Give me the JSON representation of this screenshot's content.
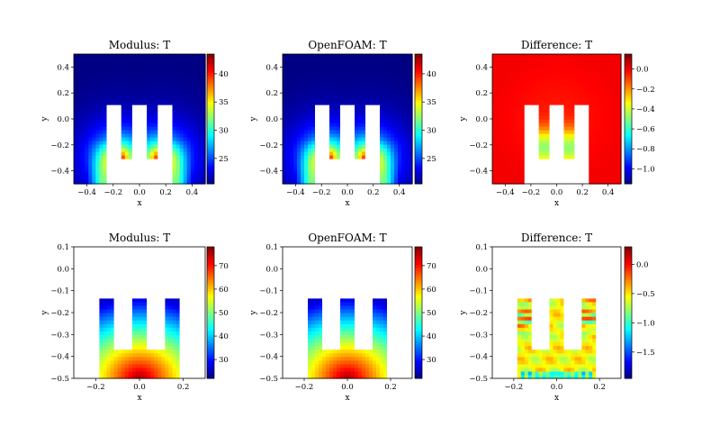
{
  "figure": {
    "colormap": "jet",
    "mask_color": "#ffffff"
  },
  "chart_data": [
    {
      "type": "heatmap",
      "title": "Modulus: T",
      "xlabel": "x",
      "ylabel": "y",
      "xlim": [
        -0.5,
        0.5
      ],
      "ylim": [
        -0.5,
        0.5
      ],
      "xticks": [
        -0.4,
        -0.2,
        0.0,
        0.2,
        0.4
      ],
      "yticks": [
        -0.4,
        -0.2,
        0.0,
        0.2,
        0.4
      ],
      "xtick_labels": [
        "−0.4",
        "−0.2",
        "0.0",
        "0.2",
        "0.4"
      ],
      "ytick_labels": [
        "−0.4",
        "−0.2",
        "0.0",
        "0.2",
        "0.4"
      ],
      "colorbar": {
        "range": [
          20.5,
          43.5
        ],
        "ticks": [
          25,
          30,
          35,
          40
        ],
        "labels": [
          "25",
          "30",
          "35",
          "40"
        ]
      },
      "field": "corner_heated",
      "heat_sink_geometry": {
        "base": [
          -0.25,
          0.25,
          -0.5,
          -0.3
        ],
        "fins": [
          [
            -0.25,
            -0.15
          ],
          [
            -0.05,
            0.05
          ],
          [
            0.15,
            0.25
          ]
        ],
        "fin_top": 0.1
      }
    },
    {
      "type": "heatmap",
      "title": "OpenFOAM: T",
      "xlabel": "x",
      "ylabel": "y",
      "xlim": [
        -0.5,
        0.5
      ],
      "ylim": [
        -0.5,
        0.5
      ],
      "xticks": [
        -0.4,
        -0.2,
        0.0,
        0.2,
        0.4
      ],
      "yticks": [
        -0.4,
        -0.2,
        0.0,
        0.2,
        0.4
      ],
      "xtick_labels": [
        "−0.4",
        "−0.2",
        "0.0",
        "0.2",
        "0.4"
      ],
      "ytick_labels": [
        "−0.4",
        "−0.2",
        "0.0",
        "0.2",
        "0.4"
      ],
      "colorbar": {
        "range": [
          20.5,
          43.5
        ],
        "ticks": [
          25,
          30,
          35,
          40
        ],
        "labels": [
          "25",
          "30",
          "35",
          "40"
        ]
      },
      "field": "corner_heated",
      "heat_sink_geometry": {
        "base": [
          -0.25,
          0.25,
          -0.5,
          -0.3
        ],
        "fins": [
          [
            -0.25,
            -0.15
          ],
          [
            -0.05,
            0.05
          ],
          [
            0.15,
            0.25
          ]
        ],
        "fin_top": 0.1
      }
    },
    {
      "type": "heatmap",
      "title": "Difference: T",
      "xlabel": "x",
      "ylabel": "y",
      "xlim": [
        -0.5,
        0.5
      ],
      "ylim": [
        -0.5,
        0.5
      ],
      "xticks": [
        -0.4,
        -0.2,
        0.0,
        0.2,
        0.4
      ],
      "yticks": [
        -0.4,
        -0.2,
        0.0,
        0.2,
        0.4
      ],
      "xtick_labels": [
        "−0.4",
        "−0.2",
        "0.0",
        "0.2",
        "0.4"
      ],
      "ytick_labels": [
        "−0.4",
        "−0.2",
        "0.0",
        "0.2",
        "0.4"
      ],
      "colorbar": {
        "range": [
          -1.15,
          0.15
        ],
        "ticks": [
          0.0,
          -0.2,
          -0.4,
          -0.6,
          -0.8,
          -1.0
        ],
        "labels": [
          "0.0",
          "−0.2",
          "−0.4",
          "−0.6",
          "−0.8",
          "−1.0"
        ]
      },
      "field": "difference_outer",
      "heat_sink_geometry": {
        "base": [
          -0.25,
          0.25,
          -0.5,
          -0.3
        ],
        "fins": [
          [
            -0.25,
            -0.15
          ],
          [
            -0.05,
            0.05
          ],
          [
            0.15,
            0.25
          ]
        ],
        "fin_top": 0.1
      }
    },
    {
      "type": "heatmap",
      "title": "Modulus: T",
      "xlabel": "x",
      "ylabel": "y",
      "xlim": [
        -0.3,
        0.3
      ],
      "ylim": [
        -0.5,
        0.1
      ],
      "xticks": [
        -0.2,
        0.0,
        0.2
      ],
      "yticks": [
        -0.5,
        -0.4,
        -0.3,
        -0.2,
        -0.1,
        0.0,
        0.1
      ],
      "xtick_labels": [
        "−0.2",
        "0.0",
        "0.2"
      ],
      "ytick_labels": [
        "−0.5",
        "−0.4",
        "−0.3",
        "−0.2",
        "−0.1",
        "0.0",
        "0.1"
      ],
      "colorbar": {
        "range": [
          22,
          78
        ],
        "ticks": [
          30,
          40,
          50,
          60,
          70
        ],
        "labels": [
          "30",
          "40",
          "50",
          "60",
          "70"
        ]
      },
      "field": "solid_temperature",
      "heat_sink_geometry": {
        "region": [
          -0.19,
          0.19,
          -0.5,
          -0.135
        ],
        "notches": [
          [
            -0.11,
            -0.03
          ],
          [
            0.03,
            0.11
          ]
        ],
        "notch_bottom": -0.37
      }
    },
    {
      "type": "heatmap",
      "title": "OpenFOAM: T",
      "xlabel": "x",
      "ylabel": "y",
      "xlim": [
        -0.3,
        0.3
      ],
      "ylim": [
        -0.5,
        0.1
      ],
      "xticks": [
        -0.2,
        0.0,
        0.2
      ],
      "yticks": [
        -0.5,
        -0.4,
        -0.3,
        -0.2,
        -0.1,
        0.0,
        0.1
      ],
      "xtick_labels": [
        "−0.2",
        "0.0",
        "0.2"
      ],
      "ytick_labels": [
        "−0.5",
        "−0.4",
        "−0.3",
        "−0.2",
        "−0.1",
        "0.0",
        "0.1"
      ],
      "colorbar": {
        "range": [
          22,
          78
        ],
        "ticks": [
          30,
          40,
          50,
          60,
          70
        ],
        "labels": [
          "30",
          "40",
          "50",
          "60",
          "70"
        ]
      },
      "field": "solid_temperature",
      "heat_sink_geometry": {
        "region": [
          -0.19,
          0.19,
          -0.5,
          -0.135
        ],
        "notches": [
          [
            -0.11,
            -0.03
          ],
          [
            0.03,
            0.11
          ]
        ],
        "notch_bottom": -0.37
      }
    },
    {
      "type": "heatmap",
      "title": "Difference: T",
      "xlabel": "x",
      "ylabel": "y",
      "xlim": [
        -0.3,
        0.3
      ],
      "ylim": [
        -0.5,
        0.1
      ],
      "xticks": [
        -0.2,
        0.0,
        0.2
      ],
      "yticks": [
        -0.5,
        -0.4,
        -0.3,
        -0.2,
        -0.1,
        0.0,
        0.1
      ],
      "xtick_labels": [
        "−0.2",
        "0.0",
        "0.2"
      ],
      "ytick_labels": [
        "−0.5",
        "−0.4",
        "−0.3",
        "−0.2",
        "−0.1",
        "0.0",
        "0.1"
      ],
      "colorbar": {
        "range": [
          -1.95,
          0.3
        ],
        "ticks": [
          0.0,
          -0.5,
          -1.0,
          -1.5
        ],
        "labels": [
          "0.0",
          "−0.5",
          "−1.0",
          "−1.5"
        ]
      },
      "field": "difference_solid",
      "heat_sink_geometry": {
        "region": [
          -0.19,
          0.19,
          -0.5,
          -0.135
        ],
        "notches": [
          [
            -0.11,
            -0.03
          ],
          [
            0.03,
            0.11
          ]
        ],
        "notch_bottom": -0.37
      }
    }
  ]
}
